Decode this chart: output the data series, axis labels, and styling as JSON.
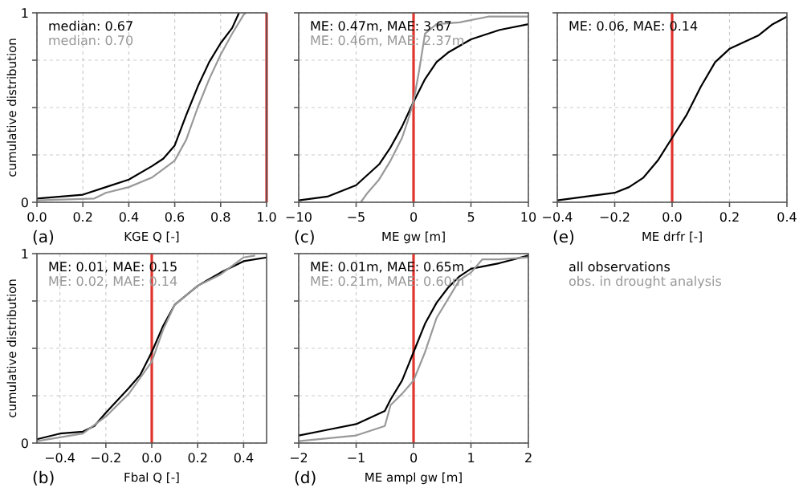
{
  "chart_data": [
    {
      "type": "line",
      "title": "(a)",
      "xlabel": "KGE Q [-]",
      "ylabel": "cumulative distribution",
      "xlim": [
        0,
        1
      ],
      "xticks": [
        {
          "value": 0,
          "label": "0.0"
        },
        {
          "value": 0.2,
          "label": "0.2"
        },
        {
          "value": 0.4,
          "label": "0.4"
        },
        {
          "value": 0.6,
          "label": "0.6"
        },
        {
          "value": 0.8,
          "label": "0.8"
        },
        {
          "value": 1,
          "label": "1.0"
        }
      ],
      "ylim": [
        0,
        1
      ],
      "yticks": [
        0,
        {
          "value": 0.25,
          "label": null
        },
        {
          "value": 0.5,
          "label": null
        },
        {
          "value": 0.75,
          "label": null
        },
        1
      ],
      "grid": true,
      "ref_lines": [
        {
          "axis": "x",
          "value": 1,
          "color": "#e0342c"
        }
      ],
      "annotations": [
        "median: 0.67",
        "median: 0.70"
      ],
      "series": [
        {
          "color": "#000000",
          "x": [
            0,
            0.2,
            0.3,
            0.4,
            0.5,
            0.55,
            0.6,
            0.65,
            0.7,
            0.75,
            0.8,
            0.85,
            0.88
          ],
          "values": [
            0.02,
            0.04,
            0.08,
            0.12,
            0.19,
            0.23,
            0.3,
            0.46,
            0.61,
            0.74,
            0.84,
            0.92,
            1
          ]
        },
        {
          "color": "#999999",
          "x": [
            0,
            0.25,
            0.3,
            0.4,
            0.5,
            0.6,
            0.65,
            0.7,
            0.75,
            0.8,
            0.85,
            0.9,
            0.91
          ],
          "values": [
            0.01,
            0.02,
            0.05,
            0.08,
            0.13,
            0.22,
            0.33,
            0.5,
            0.65,
            0.78,
            0.89,
            0.99,
            1
          ]
        }
      ]
    },
    {
      "type": "line",
      "title": "(c)",
      "xlabel": "ME gw [m]",
      "xlim": [
        -10,
        10
      ],
      "xticks": [
        {
          "value": -10,
          "label": "−10"
        },
        {
          "value": -5,
          "label": "−5"
        },
        0,
        5,
        10
      ],
      "ylim": [
        0,
        1
      ],
      "yticks": [
        0,
        0.25,
        0.5,
        0.75,
        1
      ],
      "tick_labels": "x",
      "grid": true,
      "ref_lines": [
        {
          "axis": "x",
          "value": 0,
          "color": "#e0342c"
        }
      ],
      "annotations": [
        "ME: 0.47m, MAE: 3.67",
        "ME: 0.46m, MAE: 2.37m"
      ],
      "series": [
        {
          "color": "#000000",
          "x": [
            -10,
            -7.5,
            -5,
            -3,
            -2,
            -1,
            0,
            1,
            2,
            3,
            5,
            7.5,
            10
          ],
          "values": [
            0.01,
            0.03,
            0.09,
            0.2,
            0.29,
            0.4,
            0.53,
            0.65,
            0.74,
            0.79,
            0.86,
            0.91,
            0.94
          ]
        },
        {
          "color": "#999999",
          "x": [
            -4.6,
            -4,
            -3,
            -2,
            -1,
            -0.5,
            0,
            0.5,
            1,
            2,
            4,
            6.5,
            10
          ],
          "values": [
            0,
            0.05,
            0.12,
            0.22,
            0.34,
            0.43,
            0.53,
            0.7,
            0.89,
            0.94,
            0.95,
            0.98,
            0.98
          ]
        }
      ]
    },
    {
      "type": "line",
      "title": "(e)",
      "xlabel": "ME drfr [-]",
      "xlim": [
        -0.4,
        0.4
      ],
      "xticks": [
        {
          "value": -0.4,
          "label": "−0.4"
        },
        {
          "value": -0.2,
          "label": "−0.2"
        },
        {
          "value": 0,
          "label": "0.0"
        },
        {
          "value": 0.2,
          "label": "0.2"
        },
        {
          "value": 0.4,
          "label": "0.4"
        }
      ],
      "ylim": [
        0,
        1
      ],
      "yticks": [
        0,
        0.25,
        0.5,
        0.75,
        1
      ],
      "tick_labels": "x",
      "grid": true,
      "ref_lines": [
        {
          "axis": "x",
          "value": 0,
          "color": "#e0342c"
        }
      ],
      "annotations": [
        "ME: 0.06, MAE: 0.14"
      ],
      "series": [
        {
          "color": "#000000",
          "x": [
            -0.4,
            -0.3,
            -0.2,
            -0.15,
            -0.1,
            -0.05,
            0,
            0.05,
            0.1,
            0.15,
            0.2,
            0.3,
            0.35,
            0.4
          ],
          "values": [
            0.01,
            0.03,
            0.05,
            0.08,
            0.13,
            0.22,
            0.34,
            0.46,
            0.61,
            0.74,
            0.81,
            0.88,
            0.94,
            0.98
          ]
        }
      ]
    },
    {
      "type": "line",
      "title": "(b)",
      "xlabel": "Fbal Q [-]",
      "ylabel": "cumulative distribution",
      "xlim": [
        -0.5,
        0.5
      ],
      "xticks": [
        {
          "value": -0.4,
          "label": "−0.4"
        },
        {
          "value": -0.2,
          "label": "−0.2"
        },
        {
          "value": 0,
          "label": "0.0"
        },
        {
          "value": 0.2,
          "label": "0.2"
        },
        {
          "value": 0.4,
          "label": "0.4"
        }
      ],
      "ylim": [
        0,
        1
      ],
      "yticks": [
        0,
        {
          "value": 0.25,
          "label": null
        },
        {
          "value": 0.5,
          "label": null
        },
        {
          "value": 0.75,
          "label": null
        },
        1
      ],
      "grid": true,
      "ref_lines": [
        {
          "axis": "x",
          "value": 0,
          "color": "#e0342c"
        }
      ],
      "annotations": [
        "ME: 0.01, MAE: 0.15",
        "ME: 0.02, MAE: 0.14"
      ],
      "series": [
        {
          "color": "#000000",
          "x": [
            -0.5,
            -0.4,
            -0.3,
            -0.25,
            -0.2,
            -0.1,
            -0.05,
            0,
            0.05,
            0.1,
            0.2,
            0.3,
            0.4,
            0.5
          ],
          "values": [
            0.02,
            0.05,
            0.06,
            0.09,
            0.16,
            0.29,
            0.36,
            0.48,
            0.62,
            0.73,
            0.83,
            0.9,
            0.96,
            0.98
          ]
        },
        {
          "color": "#999999",
          "x": [
            -0.5,
            -0.4,
            -0.3,
            -0.2,
            -0.1,
            0,
            0.05,
            0.1,
            0.2,
            0.3,
            0.4,
            0.45
          ],
          "values": [
            0.01,
            0.03,
            0.05,
            0.14,
            0.26,
            0.43,
            0.6,
            0.73,
            0.83,
            0.89,
            0.98,
            0.99
          ]
        }
      ]
    },
    {
      "type": "line",
      "title": "(d)",
      "xlabel": "ME ampl gw [m]",
      "xlim": [
        -2,
        2
      ],
      "xticks": [
        {
          "value": -2,
          "label": "−2"
        },
        {
          "value": -1,
          "label": "−1"
        },
        0,
        1,
        2
      ],
      "ylim": [
        0,
        1
      ],
      "yticks": [
        0,
        0.25,
        0.5,
        0.75,
        1
      ],
      "tick_labels": "x",
      "grid": true,
      "ref_lines": [
        {
          "axis": "x",
          "value": 0,
          "color": "#e0342c"
        }
      ],
      "annotations": [
        "ME: 0.01m, MAE: 0.65m",
        "ME: 0.21m, MAE: 0.60m"
      ],
      "series": [
        {
          "color": "#000000",
          "x": [
            -2,
            -1.5,
            -1,
            -0.5,
            -0.4,
            -0.2,
            0,
            0.2,
            0.4,
            0.6,
            0.8,
            1,
            1.5,
            2
          ],
          "values": [
            0.04,
            0.07,
            0.1,
            0.17,
            0.23,
            0.33,
            0.48,
            0.63,
            0.74,
            0.82,
            0.88,
            0.92,
            0.95,
            0.99
          ]
        },
        {
          "color": "#999999",
          "x": [
            -2,
            -1,
            -0.5,
            -0.4,
            -0.2,
            0,
            0.2,
            0.4,
            0.6,
            0.8,
            1,
            1.2,
            1.5,
            2
          ],
          "values": [
            0.01,
            0.04,
            0.09,
            0.2,
            0.26,
            0.33,
            0.48,
            0.66,
            0.76,
            0.86,
            0.9,
            0.97,
            0.97,
            0.98
          ]
        }
      ]
    },
    {
      "type": "other",
      "annotations": [
        "all observations",
        "obs. in drought analysis"
      ],
      "colors": [
        "#000000",
        "#999999"
      ]
    }
  ]
}
